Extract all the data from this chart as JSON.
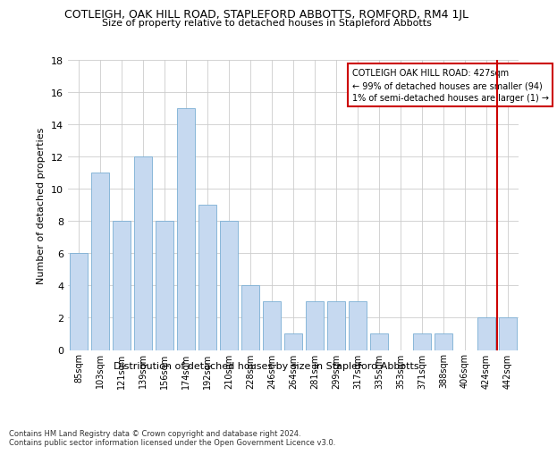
{
  "title": "COTLEIGH, OAK HILL ROAD, STAPLEFORD ABBOTTS, ROMFORD, RM4 1JL",
  "subtitle": "Size of property relative to detached houses in Stapleford Abbotts",
  "xlabel": "Distribution of detached houses by size in Stapleford Abbotts",
  "ylabel": "Number of detached properties",
  "footer_line1": "Contains HM Land Registry data © Crown copyright and database right 2024.",
  "footer_line2": "Contains public sector information licensed under the Open Government Licence v3.0.",
  "categories": [
    "85sqm",
    "103sqm",
    "121sqm",
    "139sqm",
    "156sqm",
    "174sqm",
    "192sqm",
    "210sqm",
    "228sqm",
    "246sqm",
    "264sqm",
    "281sqm",
    "299sqm",
    "317sqm",
    "335sqm",
    "353sqm",
    "371sqm",
    "388sqm",
    "406sqm",
    "424sqm",
    "442sqm"
  ],
  "values": [
    6,
    11,
    8,
    12,
    8,
    15,
    9,
    8,
    4,
    3,
    1,
    3,
    3,
    3,
    1,
    0,
    1,
    1,
    0,
    2,
    2
  ],
  "bar_color": "#c6d9f0",
  "bar_edge_color": "#7bafd4",
  "annotation_box_color": "#cc0000",
  "annotation_text": "COTLEIGH OAK HILL ROAD: 427sqm\n← 99% of detached houses are smaller (94)\n1% of semi-detached houses are larger (1) →",
  "vline_x_index": 19,
  "vline_color": "#cc0000",
  "ylim": [
    0,
    18
  ],
  "yticks": [
    0,
    2,
    4,
    6,
    8,
    10,
    12,
    14,
    16,
    18
  ],
  "background_color": "#ffffff",
  "grid_color": "#cccccc"
}
